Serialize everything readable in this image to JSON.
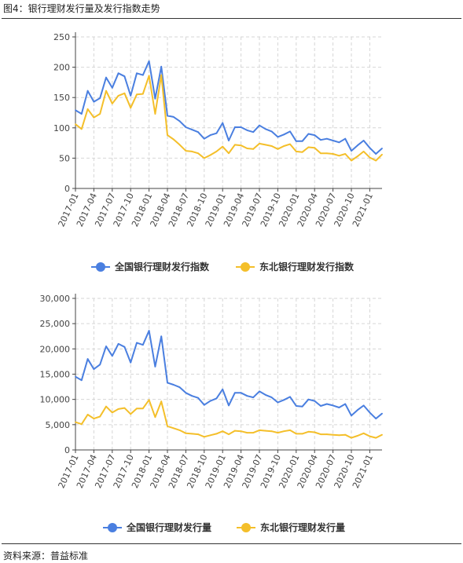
{
  "figure_title": "图4：银行理财发行量及发行指数走势",
  "source": "资料来源：普益标准",
  "colors": {
    "national": "#4a7fe0",
    "northeast": "#f4bf2a",
    "grid": "#d6d6d6",
    "axis": "#444444"
  },
  "chart_data": [
    {
      "type": "line",
      "ylim": [
        0,
        250
      ],
      "yticks": [
        "0",
        "50",
        "100",
        "150",
        "200",
        "250"
      ],
      "xtick_labels": [
        "2017-01",
        "2017-04",
        "2017-07",
        "2017-10",
        "2018-01",
        "2018-04",
        "2018-07",
        "2018-10",
        "2019-01",
        "2019-04",
        "2019-07",
        "2019-10",
        "2020-01",
        "2020-04",
        "2020-07",
        "2020-10",
        "2021-01"
      ],
      "legend_position": "bottom-center",
      "series": [
        {
          "name": "全国银行理财发行指数",
          "color_key": "national",
          "values": [
            129,
            123,
            161,
            143,
            149,
            183,
            166,
            190,
            185,
            153,
            190,
            187,
            210,
            148,
            201,
            120,
            118,
            111,
            101,
            97,
            93,
            82,
            88,
            91,
            108,
            79,
            101,
            101,
            96,
            93,
            104,
            98,
            94,
            85,
            89,
            94,
            78,
            78,
            90,
            88,
            80,
            82,
            79,
            76,
            82,
            62,
            71,
            79,
            67,
            57,
            66
          ]
        },
        {
          "name": "东北银行理财发行指数",
          "color_key": "northeast",
          "values": [
            106,
            98,
            131,
            117,
            123,
            161,
            140,
            153,
            157,
            133,
            155,
            156,
            186,
            123,
            187,
            88,
            81,
            72,
            62,
            61,
            58,
            50,
            55,
            61,
            69,
            58,
            72,
            71,
            66,
            65,
            74,
            72,
            70,
            65,
            70,
            73,
            61,
            60,
            68,
            67,
            58,
            58,
            57,
            54,
            57,
            46,
            53,
            61,
            51,
            46,
            56
          ]
        }
      ]
    },
    {
      "type": "line",
      "ylim": [
        0,
        30000
      ],
      "yticks": [
        "0",
        "5,000",
        "10,000",
        "15,000",
        "20,000",
        "25,000",
        "30,000"
      ],
      "xtick_labels": [
        "2017-01",
        "2017-04",
        "2017-07",
        "2017-10",
        "2018-01",
        "2018-04",
        "2018-07",
        "2018-10",
        "2019-01",
        "2019-04",
        "2019-07",
        "2019-10",
        "2020-01",
        "2020-04",
        "2020-07",
        "2020-10",
        "2021-01"
      ],
      "legend_position": "bottom-center",
      "series": [
        {
          "name": "全国银行理财发行量",
          "color_key": "national",
          "values": [
            14500,
            13800,
            18000,
            16000,
            16900,
            20500,
            18600,
            21000,
            20400,
            17300,
            21200,
            20800,
            23600,
            16500,
            22500,
            13300,
            12900,
            12400,
            11300,
            10700,
            10300,
            8900,
            9700,
            10200,
            12000,
            8800,
            11300,
            11300,
            10700,
            10400,
            11600,
            10900,
            10400,
            9400,
            9900,
            10500,
            8700,
            8600,
            10000,
            9700,
            8700,
            9100,
            8800,
            8400,
            9100,
            6800,
            7900,
            8800,
            7400,
            6200,
            7200
          ]
        },
        {
          "name": "东北银行理财发行量",
          "color_key": "northeast",
          "values": [
            5500,
            5100,
            7000,
            6200,
            6600,
            8600,
            7400,
            8100,
            8300,
            7100,
            8200,
            8200,
            9900,
            6500,
            9600,
            4700,
            4300,
            3900,
            3300,
            3200,
            3100,
            2600,
            2900,
            3200,
            3700,
            3100,
            3800,
            3700,
            3400,
            3400,
            3900,
            3800,
            3700,
            3400,
            3700,
            3900,
            3200,
            3200,
            3600,
            3500,
            3100,
            3100,
            3000,
            2900,
            3000,
            2400,
            2800,
            3300,
            2700,
            2400,
            3000
          ]
        }
      ]
    }
  ]
}
